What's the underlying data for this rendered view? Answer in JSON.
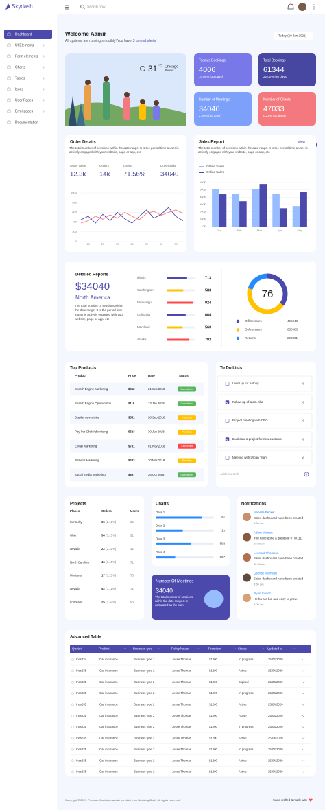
{
  "header": {
    "brand": "Skydash",
    "search_placeholder": "Search now"
  },
  "sidebar": {
    "items": [
      "Dashboard",
      "UI Elements",
      "Form elements",
      "Charts",
      "Tables",
      "Icons",
      "User Pages",
      "Error pages",
      "Documentation"
    ]
  },
  "welcome": {
    "title": "Welcome Aamir",
    "subtitle": "All systems are running smoothly! You have",
    "alerts_link": "3 unread alerts!",
    "date_button": "Today (10 Jan 2021)"
  },
  "weather": {
    "temperature": "31",
    "unit": "°C",
    "city": "Chicago",
    "region": "Illinois"
  },
  "stat_cards": [
    {
      "label": "Today's Bookings",
      "value": "4006",
      "change": "10.00% (30 days)",
      "color": "#7978e9"
    },
    {
      "label": "Total Bookings",
      "value": "61344",
      "change": "22.00% (30 days)",
      "color": "#4747a1"
    },
    {
      "label": "Number of Meetings",
      "value": "34040",
      "change": "2.00% (30 days)",
      "color": "#7da0fa"
    },
    {
      "label": "Number of Clients",
      "value": "47033",
      "change": "0.22% (30 days)",
      "color": "#f3797e"
    }
  ],
  "order_details": {
    "title": "Order Details",
    "description": "The total number of sessions within the date range. It is the period time a user is actively engaged with your website, page or app, etc",
    "stats": [
      {
        "label": "Order value",
        "value": "12.3k"
      },
      {
        "label": "Orders",
        "value": "14k"
      },
      {
        "label": "Users",
        "value": "71.56%"
      },
      {
        "label": "Downloads",
        "value": "34040"
      }
    ],
    "chart": {
      "type": "line",
      "x": [
        5,
        10,
        15,
        20,
        25,
        30,
        35,
        40,
        45,
        50,
        55,
        60,
        65,
        70,
        75
      ],
      "series": [
        {
          "color": "#4b49ac",
          "values": [
            450,
            520,
            380,
            560,
            430,
            600,
            470,
            380,
            520,
            650,
            480,
            560,
            700,
            520,
            430
          ]
        },
        {
          "color": "#f3797e",
          "values": [
            380,
            430,
            520,
            460,
            550,
            480,
            600,
            520,
            450,
            580,
            620,
            540,
            600,
            650,
            580
          ]
        }
      ],
      "xlim": [
        5,
        75
      ],
      "xticks": [
        10,
        20,
        30,
        40,
        50,
        60,
        70
      ],
      "ylim": [
        0,
        1000
      ],
      "yticks": [
        0,
        200,
        400,
        600,
        800,
        1000
      ],
      "grid": true
    }
  },
  "sales_report": {
    "title": "Sales Report",
    "link": "View",
    "description": "The total number of sessions within the date range. It is the period time a user is actively engaged with your website, page or app, etc",
    "chart": {
      "type": "bar",
      "categories": [
        "Jan",
        "Feb",
        "Mar",
        "Apr",
        "May"
      ],
      "series": [
        {
          "name": "Offline Sales",
          "color": "#98bdff",
          "values": [
            515,
            450,
            515,
            450,
            280
          ]
        },
        {
          "name": "Online Sales",
          "color": "#4b49ac",
          "values": [
            440,
            345,
            580,
            250,
            470
          ]
        }
      ],
      "ylim": [
        0,
        600
      ],
      "yticks": [
        {
          "value": 0,
          "label": "0$"
        },
        {
          "value": 100,
          "label": "100$"
        },
        {
          "value": 200,
          "label": "200$"
        },
        {
          "value": 300,
          "label": "300$"
        },
        {
          "value": 400,
          "label": "400$"
        },
        {
          "value": 500,
          "label": "500$"
        },
        {
          "value": 600,
          "label": "600$"
        }
      ],
      "grid": true
    }
  },
  "detailed_reports": {
    "title": "Detailed Reports",
    "amount": "$34040",
    "region": "North America",
    "description": "The total number of sessions within the date range. It is the period time a user is actively engaged with your website, page or app, etc",
    "bars": {
      "type": "bar",
      "categories": [
        "Illinois",
        "Washington",
        "Mississippi",
        "California",
        "Maryland",
        "Alaska"
      ],
      "values": [
        713,
        583,
        924,
        664,
        560,
        793
      ],
      "colors": [
        "#4b49ac",
        "#ffc100",
        "#ff4747",
        "#4b49ac",
        "#ffc100",
        "#ff4747"
      ],
      "xlim": [
        0,
        1000
      ]
    },
    "donut": {
      "type": "pie",
      "center": "76",
      "categories": [
        "Offline sales",
        "Online sales",
        "Returns"
      ],
      "values": [
        495343,
        630983,
        290831
      ],
      "colors": [
        "#4b49ac",
        "#ffc100",
        "#248afd"
      ]
    }
  },
  "top_products": {
    "title": "Top Products",
    "headers": [
      "Product",
      "Price",
      "Date",
      "Status"
    ],
    "rows": [
      [
        "Search Engine Marketing",
        "$362",
        "21 Sep 2018",
        "Completed"
      ],
      [
        "Search Engine Optimization",
        "$116",
        "13 Jan 2018",
        "Completed"
      ],
      [
        "Display Advertising",
        "$551",
        "28 Sep 2018",
        "Pending"
      ],
      [
        "Pay Per Click Advertising",
        "$523",
        "30 Jun 2018",
        "Pending"
      ],
      [
        "E-Mail Marketing",
        "$781",
        "01 Nov 2018",
        "Cancelled"
      ],
      [
        "Referral Marketing",
        "$283",
        "20 Mar 2018",
        "Pending"
      ],
      [
        "Social media marketing",
        "$897",
        "26 Oct 2018",
        "Completed"
      ]
    ],
    "status_colors": [
      "#57b657",
      "#57b657",
      "#ffc100",
      "#ffc100",
      "#ff4747",
      "#ffc100",
      "#57b657"
    ]
  },
  "todo": {
    "title": "To Do Lists",
    "items": [
      {
        "text": "Level up for Antony",
        "done": false
      },
      {
        "text": "Follow up of team zilla",
        "done": true
      },
      {
        "text": "Project meeting with CEO",
        "done": false
      },
      {
        "text": "Duplicate a project for new customer",
        "done": true
      },
      {
        "text": "Meeting with Urban Team",
        "done": false
      }
    ],
    "add_placeholder": "Add new task"
  },
  "projects": {
    "title": "Projects",
    "headers": [
      "Places",
      "Orders",
      "Users"
    ],
    "rows": [
      [
        "Kentucky",
        "65",
        "(2.15%)",
        "65"
      ],
      [
        "Ohio",
        "54",
        "(3.25%)",
        "51"
      ],
      [
        "Nevada",
        "22",
        "(2.22%)",
        "32"
      ],
      [
        "North Carolina",
        "46",
        "(3.15%)",
        "71"
      ],
      [
        "Montana",
        "17",
        "(1.25%)",
        "76"
      ],
      [
        "Nevada",
        "52",
        "(3.11%)",
        "71"
      ],
      [
        "Louisiana",
        "25",
        "(1.32%)",
        "93"
      ]
    ]
  },
  "charts_card": {
    "title": "Charts",
    "color": "#248afd",
    "xlim": [
      0,
      100
    ],
    "rows": [
      {
        "label": "Data 1",
        "value": "5k",
        "progress": 80
      },
      {
        "label": "Data 2",
        "value": "1k",
        "progress": 47
      },
      {
        "label": "Data 3",
        "value": "892",
        "progress": 61
      },
      {
        "label": "Data 4",
        "value": "687",
        "progress": 34
      }
    ]
  },
  "meetings": {
    "title": "Number Of Meetings",
    "value": "34040",
    "description": "The total number of sessions within the date range.It is calculated as the sum"
  },
  "notifications": {
    "title": "Notifications",
    "items": [
      {
        "name": "Isabella Becker",
        "message": "Sales dashboard have been created",
        "time": "9:30 am"
      },
      {
        "name": "Adam Warren",
        "message": "You have done a great job #TW111",
        "time": "10:30 am"
      },
      {
        "name": "Leonard Thomson",
        "message": "Sales dashboard have been created",
        "time": "11:30 am"
      },
      {
        "name": "George Morrison",
        "message": "Sales dashboard have been created",
        "time": "8:50 am"
      },
      {
        "name": "Ryan Cortez",
        "message": "Herbs are fun and easy to grow.",
        "time": "9:00 am"
      }
    ]
  },
  "advanced_table": {
    "title": "Advanced Table",
    "headers": [
      "Quote#",
      "Product",
      "Business type",
      "Policy holder",
      "Premium",
      "Status",
      "Updated at"
    ],
    "rows": [
      [
        "Incs234",
        "Car insurance",
        "Business type 1",
        "Jesse Thomas",
        "$1200",
        "In progress",
        "25/04/2020"
      ],
      [
        "Incs235",
        "Car insurance",
        "Business type 2",
        "Jesse Thomas",
        "$1200",
        "Active",
        "25/04/2020"
      ],
      [
        "Incs235",
        "Car insurance",
        "Business type 2",
        "Jesse Thomas",
        "$1200",
        "Expired",
        "25/04/2020"
      ],
      [
        "Incs235",
        "Car insurance",
        "Business type 2",
        "Jesse Thomas",
        "$1200",
        "In progress",
        "25/04/2020"
      ],
      [
        "Incs235",
        "Car insurance",
        "Business type 2",
        "Jesse Thomas",
        "$1200",
        "Active",
        "25/04/2020"
      ],
      [
        "Incs235",
        "Car insurance",
        "Business type 2",
        "Jesse Thomas",
        "$1200",
        "Active",
        "25/04/2020"
      ],
      [
        "Incs235",
        "Car insurance",
        "Business type 2",
        "Jesse Thomas",
        "$1200",
        "In progress",
        "25/04/2020"
      ],
      [
        "Incs235",
        "Car insurance",
        "Business type 2",
        "Jesse Thomas",
        "$1200",
        "Active",
        "25/04/2020"
      ],
      [
        "Incs235",
        "Car insurance",
        "Business type 2",
        "Jesse Thomas",
        "$1200",
        "In progress",
        "25/04/2020"
      ],
      [
        "Incs235",
        "Car insurance",
        "Business type 2",
        "Jesse Thomas",
        "$1200",
        "Active",
        "25/04/2020"
      ],
      [
        "Incs235",
        "Car insurance",
        "Business type 2",
        "Jesse Thomas",
        "$1200",
        "Active",
        "25/04/2020"
      ]
    ]
  },
  "footer": {
    "copyright": "Copyright © 2021. Premium Bootstrap admin template from BootstrapDash. All rights reserved.",
    "made_with": "Hand-crafted & made with"
  }
}
